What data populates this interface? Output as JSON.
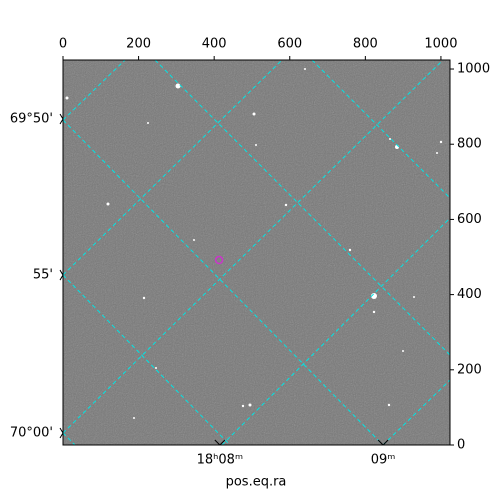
{
  "chart_data": {
    "type": "image",
    "xlabel": "pos.eq.ra",
    "xlim": [
      0,
      1024
    ],
    "ylim": [
      0,
      1024
    ],
    "xticks": [
      0,
      200,
      400,
      600,
      800,
      1000
    ],
    "yticks": [
      0,
      200,
      400,
      600,
      800,
      1000
    ],
    "ra_ticks": [
      {
        "value": 415,
        "label": "18ʰ08ᵐ"
      },
      {
        "value": 847,
        "label": "09ᵐ"
      }
    ],
    "dec_ticks": [
      {
        "value": 867,
        "label": "69°50'"
      },
      {
        "value": 452,
        "label": "55'"
      },
      {
        "value": 32,
        "label": "70°00'"
      }
    ],
    "grid_color": "#00e5e5",
    "markers": {
      "x": [
        413
      ],
      "y": [
        492
      ],
      "color": "#cc33cc"
    }
  }
}
